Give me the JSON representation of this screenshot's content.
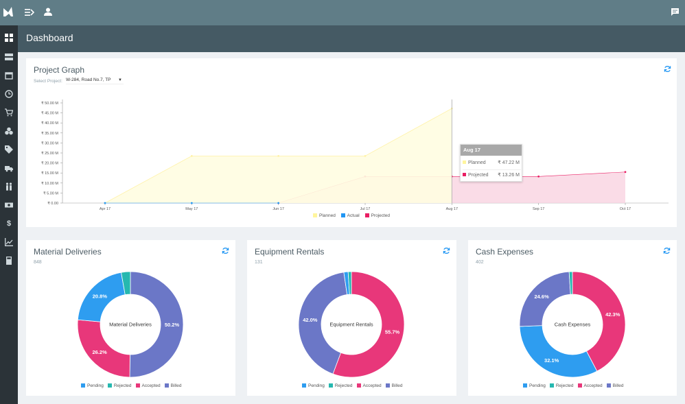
{
  "header": {
    "title": "Dashboard"
  },
  "project_graph": {
    "title": "Project Graph",
    "select_label": "Select Project:",
    "select_value": "W-284, Road No.7, TP",
    "tooltip": {
      "title": "Aug 17",
      "rows": [
        {
          "name": "Planned",
          "value": "₹ 47.22 M",
          "color": "#fffbcc"
        },
        {
          "name": "Projected",
          "value": "₹ 13.26 M",
          "color": "#e91e63"
        }
      ]
    },
    "legend": [
      {
        "name": "Planned",
        "color": "#fff9c4"
      },
      {
        "name": "Actual",
        "color": "#2196f3"
      },
      {
        "name": "Projected",
        "color": "#e91e63"
      }
    ]
  },
  "chart_data": [
    {
      "type": "area",
      "x": [
        "Apr 17",
        "May 17",
        "Jun 17",
        "Jul 17",
        "Aug 17",
        "Sep 17",
        "Oct 17"
      ],
      "ytick_labels": [
        "₹ 0.00",
        "₹ 5.00 M",
        "₹ 10.00 M",
        "₹ 15.00 M",
        "₹ 20.00 M",
        "₹ 25.00 M",
        "₹ 30.00 M",
        "₹ 35.00 M",
        "₹ 40.00 M",
        "₹ 45.00 M",
        "₹ 50.00 M"
      ],
      "ylim": [
        0,
        50
      ],
      "series": [
        {
          "name": "Planned",
          "values": [
            0,
            23.5,
            23.5,
            23.5,
            47.22,
            null,
            null
          ],
          "color": "#fff9c4"
        },
        {
          "name": "Actual",
          "values": [
            0,
            0,
            0,
            null,
            null,
            null,
            null
          ],
          "color": "#2196f3"
        },
        {
          "name": "Projected",
          "values": [
            null,
            null,
            0,
            13.26,
            13.26,
            13.26,
            15.5
          ],
          "color": "#e91e63"
        }
      ],
      "legend_position": "bottom"
    },
    {
      "type": "pie",
      "title": "Material Deliveries",
      "count": "848",
      "center_label": "Material Deliveries",
      "slices": [
        {
          "name": "Billed",
          "value": 50.2,
          "color": "#6b77c7",
          "label": "50.2%"
        },
        {
          "name": "Accepted",
          "value": 26.2,
          "color": "#e8377a",
          "label": "26.2%"
        },
        {
          "name": "Pending",
          "value": 20.8,
          "color": "#2e9df0",
          "label": "20.8%"
        },
        {
          "name": "Rejected",
          "value": 2.8,
          "color": "#26b8b0",
          "label": ""
        }
      ]
    },
    {
      "type": "pie",
      "title": "Equipment Rentals",
      "count": "131",
      "center_label": "Equipment Rentals",
      "slices": [
        {
          "name": "Accepted",
          "value": 55.7,
          "color": "#e8377a",
          "label": "55.7%"
        },
        {
          "name": "Billed",
          "value": 42.0,
          "color": "#6b77c7",
          "label": "42.0%"
        },
        {
          "name": "Pending",
          "value": 1.3,
          "color": "#2e9df0",
          "label": ""
        },
        {
          "name": "Rejected",
          "value": 1.0,
          "color": "#26b8b0",
          "label": ""
        }
      ]
    },
    {
      "type": "pie",
      "title": "Cash Expenses",
      "count": "402",
      "center_label": "Cash Expenses",
      "slices": [
        {
          "name": "Accepted",
          "value": 42.3,
          "color": "#e8377a",
          "label": "42.3%"
        },
        {
          "name": "Pending",
          "value": 32.1,
          "color": "#2e9df0",
          "label": "32.1%"
        },
        {
          "name": "Billed",
          "value": 24.6,
          "color": "#6b77c7",
          "label": "24.6%"
        },
        {
          "name": "Rejected",
          "value": 1.0,
          "color": "#26b8b0",
          "label": ""
        }
      ]
    }
  ],
  "donut_legend": [
    {
      "name": "Pending",
      "color": "#2e9df0"
    },
    {
      "name": "Rejected",
      "color": "#26b8b0"
    },
    {
      "name": "Accepted",
      "color": "#e8377a"
    },
    {
      "name": "Billed",
      "color": "#6b77c7"
    }
  ]
}
